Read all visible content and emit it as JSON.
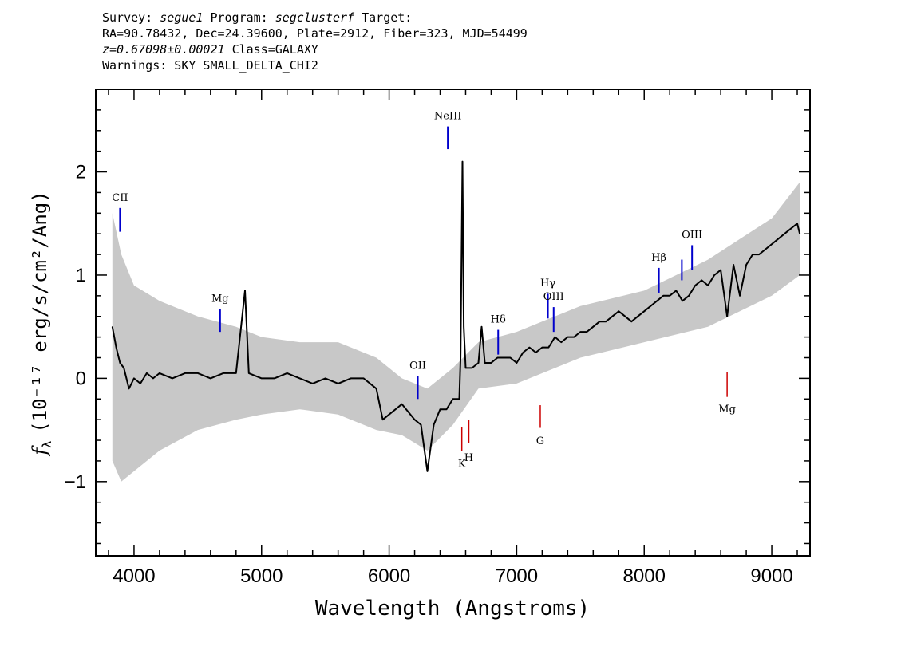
{
  "header": {
    "line1": {
      "survey_label": "Survey:",
      "survey": "segue1",
      "program_label": "Program:",
      "program": "segclusterf",
      "target_label": "Target:"
    },
    "line2": "RA=90.78432, Dec=24.39600, Plate=2912, Fiber=323, MJD=54499",
    "line3": {
      "z": "z=0.67098±0.00021",
      "class": "Class=GALAXY"
    },
    "line4": "Warnings: SKY SMALL_DELTA_CHI2"
  },
  "colors": {
    "flux": "#000000",
    "error_band": "#c8c8c8",
    "emission": "#0000cc",
    "absorption": "#cc0000"
  },
  "chart_data": {
    "type": "line",
    "xlabel": "Wavelength (Angstroms)",
    "ylabel": "(10⁻¹⁷ erg/s/cm²/Ang)",
    "ylabel_symbol": "f",
    "ylabel_subscript": "λ",
    "xlim": [
      3700,
      9300
    ],
    "ylim": [
      -1.72,
      2.8
    ],
    "xticks": [
      4000,
      5000,
      6000,
      7000,
      8000,
      9000
    ],
    "xtick_labels": [
      "4000",
      "5000",
      "6000",
      "7000",
      "8000",
      "9000"
    ],
    "yticks": [
      -1,
      0,
      1,
      2
    ],
    "ytick_labels": [
      "−1",
      "0",
      "1",
      "2"
    ],
    "series": [
      {
        "name": "flux",
        "x": [
          3830,
          3860,
          3890,
          3920,
          3960,
          4000,
          4050,
          4100,
          4150,
          4200,
          4300,
          4400,
          4500,
          4600,
          4700,
          4800,
          4870,
          4900,
          5000,
          5100,
          5200,
          5300,
          5400,
          5500,
          5600,
          5700,
          5800,
          5900,
          5950,
          6000,
          6100,
          6200,
          6250,
          6300,
          6350,
          6400,
          6450,
          6500,
          6550,
          6560,
          6575,
          6585,
          6600,
          6650,
          6700,
          6725,
          6750,
          6800,
          6850,
          6900,
          6950,
          7000,
          7050,
          7100,
          7150,
          7200,
          7250,
          7300,
          7350,
          7400,
          7450,
          7500,
          7550,
          7600,
          7650,
          7700,
          7750,
          7800,
          7850,
          7900,
          7950,
          8000,
          8050,
          8100,
          8150,
          8200,
          8250,
          8300,
          8350,
          8400,
          8450,
          8500,
          8550,
          8600,
          8650,
          8700,
          8750,
          8800,
          8850,
          8900,
          8950,
          9000,
          9050,
          9100,
          9150,
          9200,
          9220
        ],
        "y": [
          0.5,
          0.3,
          0.15,
          0.1,
          -0.1,
          0.0,
          -0.05,
          0.05,
          0.0,
          0.05,
          0.0,
          0.05,
          0.05,
          0.0,
          0.05,
          0.05,
          0.85,
          0.05,
          0.0,
          0.0,
          0.05,
          0.0,
          -0.05,
          0.0,
          -0.05,
          0.0,
          0.0,
          -0.1,
          -0.4,
          -0.35,
          -0.25,
          -0.4,
          -0.45,
          -0.9,
          -0.45,
          -0.3,
          -0.3,
          -0.2,
          -0.2,
          0.2,
          2.1,
          0.5,
          0.1,
          0.1,
          0.15,
          0.5,
          0.15,
          0.15,
          0.2,
          0.2,
          0.2,
          0.15,
          0.25,
          0.3,
          0.25,
          0.3,
          0.3,
          0.4,
          0.35,
          0.4,
          0.4,
          0.45,
          0.45,
          0.5,
          0.55,
          0.55,
          0.6,
          0.65,
          0.6,
          0.55,
          0.6,
          0.65,
          0.7,
          0.75,
          0.8,
          0.8,
          0.85,
          0.75,
          0.8,
          0.9,
          0.95,
          0.9,
          1.0,
          1.05,
          0.6,
          1.1,
          0.8,
          1.1,
          1.2,
          1.2,
          1.25,
          1.3,
          1.35,
          1.4,
          1.45,
          1.5,
          1.4
        ]
      },
      {
        "name": "error",
        "x": [
          3830,
          3900,
          4000,
          4200,
          4500,
          4800,
          5000,
          5300,
          5600,
          5900,
          6100,
          6300,
          6500,
          6700,
          7000,
          7500,
          8000,
          8500,
          9000,
          9220
        ],
        "upper": [
          1.6,
          1.2,
          0.9,
          0.75,
          0.6,
          0.5,
          0.4,
          0.35,
          0.35,
          0.2,
          0.0,
          -0.1,
          0.1,
          0.35,
          0.45,
          0.7,
          0.85,
          1.15,
          1.55,
          1.9
        ],
        "lower": [
          -0.8,
          -1.0,
          -0.9,
          -0.7,
          -0.5,
          -0.4,
          -0.35,
          -0.3,
          -0.35,
          -0.5,
          -0.55,
          -0.7,
          -0.45,
          -0.1,
          -0.05,
          0.2,
          0.35,
          0.5,
          0.8,
          1.0
        ]
      }
    ],
    "annotations": [
      {
        "label": "CII",
        "x": 3890,
        "y1": 1.42,
        "y2": 1.65,
        "text_y": 1.72,
        "kind": "emission"
      },
      {
        "label": "Mg",
        "x": 4675,
        "y1": 0.45,
        "y2": 0.67,
        "text_y": 0.74,
        "kind": "emission"
      },
      {
        "label": "OII",
        "x": 6225,
        "y1": -0.2,
        "y2": 0.02,
        "text_y": 0.09,
        "kind": "emission"
      },
      {
        "label": "NeIII",
        "x": 6460,
        "y1": 2.22,
        "y2": 2.44,
        "text_y": 2.51,
        "kind": "emission"
      },
      {
        "label": "Hδ",
        "x": 6855,
        "y1": 0.23,
        "y2": 0.47,
        "text_y": 0.54,
        "kind": "emission"
      },
      {
        "label": "Hγ",
        "x": 7245,
        "y1": 0.58,
        "y2": 0.82,
        "text_y": 0.89,
        "kind": "emission"
      },
      {
        "label": "OIII",
        "x": 7290,
        "y1": 0.45,
        "y2": 0.69,
        "text_y": 0.76,
        "kind": "emission"
      },
      {
        "label": "Hβ",
        "x": 8115,
        "y1": 0.83,
        "y2": 1.07,
        "text_y": 1.14,
        "kind": "emission"
      },
      {
        "label": "OIII",
        "x": 8375,
        "y1": 1.05,
        "y2": 1.29,
        "text_y": 1.36,
        "kind": "emission"
      },
      {
        "label": "",
        "x": 8295,
        "y1": 0.95,
        "y2": 1.15,
        "text_y": 1.2,
        "kind": "emission"
      },
      {
        "label": "K",
        "x": 6570,
        "y1": -0.7,
        "y2": -0.47,
        "text_y": -0.86,
        "kind": "absorption"
      },
      {
        "label": "H",
        "x": 6625,
        "y1": -0.63,
        "y2": -0.4,
        "text_y": -0.8,
        "kind": "absorption"
      },
      {
        "label": "G",
        "x": 7185,
        "y1": -0.48,
        "y2": -0.26,
        "text_y": -0.64,
        "kind": "absorption"
      },
      {
        "label": "Mg",
        "x": 8650,
        "y1": -0.18,
        "y2": 0.06,
        "text_y": -0.33,
        "kind": "absorption"
      }
    ]
  }
}
